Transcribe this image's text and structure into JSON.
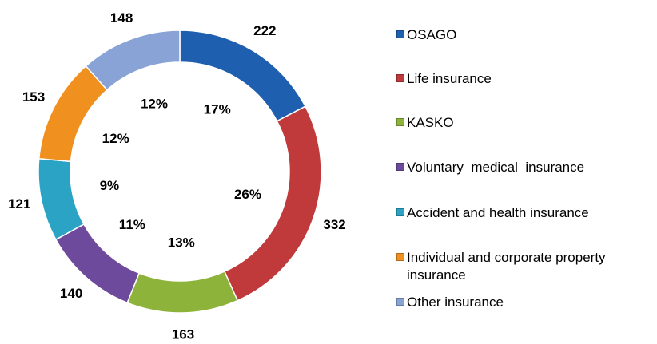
{
  "chart_data": {
    "type": "donut",
    "categories": [
      "OSAGO",
      "Life insurance",
      "KASKO",
      "Voluntary  medical  insurance",
      "Accident and health insurance",
      "Individual and corporate property insurance",
      "Other insurance"
    ],
    "values": [
      222,
      332,
      163,
      140,
      121,
      153,
      148
    ],
    "percentages": [
      17,
      26,
      13,
      11,
      9,
      12,
      12
    ],
    "percentage_labels": [
      "17%",
      "26%",
      "13%",
      "11%",
      "9%",
      "12%",
      "12%"
    ],
    "colors": [
      "#1f5fb0",
      "#c0393b",
      "#8db33a",
      "#6d4a9b",
      "#2aa3c4",
      "#f0901e",
      "#8aa3d6"
    ],
    "legend": "right"
  }
}
